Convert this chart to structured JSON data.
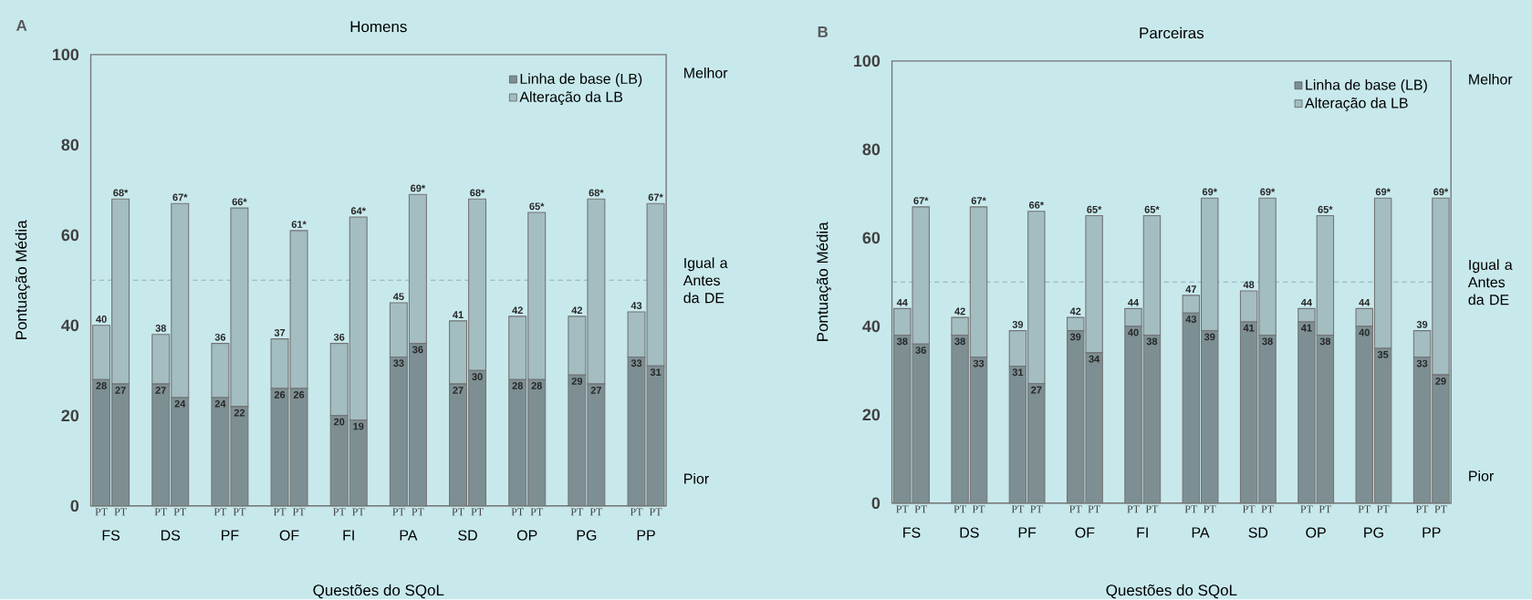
{
  "chart_data": [
    {
      "type": "bar",
      "title": "Homens",
      "xlabel": "Questões do SQoL",
      "ylabel": "Pontuação Média",
      "legend": "top right",
      "stacked": true,
      "categories": [
        "PT",
        "PT",
        "PT",
        "PT",
        "PT",
        "PT",
        "PT",
        "PT",
        "PT",
        "PT",
        "PT",
        "PT",
        "PT",
        "PT",
        "PT",
        "PT",
        "PT",
        "PT",
        "PT",
        "PT"
      ],
      "series": [
        {
          "name": "Linha de base (LB)",
          "color": "#7d8f93",
          "values": [
            28,
            27,
            27,
            24,
            24,
            22,
            26,
            26,
            20,
            19,
            33,
            36,
            27,
            30,
            28,
            28,
            29,
            27,
            33,
            31
          ],
          "value_labels": [
            "28",
            "27",
            "27",
            "24",
            "24",
            "22",
            "26",
            "26",
            "20",
            "19",
            "33",
            "36",
            "27",
            "30",
            "28",
            "28",
            "29",
            "27",
            "33",
            "31"
          ]
        },
        {
          "name": "Alteração da LB",
          "color": "#a3bdc1",
          "values": [
            12,
            41,
            11,
            43,
            12,
            44,
            11,
            35,
            16,
            45,
            12,
            33,
            14,
            38,
            14,
            37,
            13,
            41,
            10,
            36
          ]
        }
      ],
      "totals": [
        "40",
        "68*",
        "38",
        "67*",
        "36",
        "66*",
        "37",
        "61*",
        "36",
        "64*",
        "45",
        "69*",
        "41",
        "68*",
        "42",
        "65*",
        "42",
        "68*",
        "43",
        "67*"
      ],
      "ylim": [
        0,
        100
      ],
      "yticks": [
        0,
        20,
        40,
        60,
        80,
        100
      ],
      "ref_lines": [
        {
          "axis": "y",
          "value": 50,
          "label": "Igual a Antes da DE",
          "color": "#8fb0b4",
          "line_style": "dashed"
        }
      ],
      "annotations": [
        "A",
        "Melhor",
        "Pior",
        "FS",
        "DS",
        "PF",
        "OF",
        "FI",
        "PA",
        "SD",
        "OP",
        "PG",
        "PP"
      ]
    },
    {
      "type": "bar",
      "title": "Parceiras",
      "xlabel": "Questões do SQoL",
      "ylabel": "Pontuação Média",
      "legend": "top right",
      "stacked": true,
      "categories": [
        "PT",
        "PT",
        "PT",
        "PT",
        "PT",
        "PT",
        "PT",
        "PT",
        "PT",
        "PT",
        "PT",
        "PT",
        "PT",
        "PT",
        "PT",
        "PT",
        "PT",
        "PT",
        "PT",
        "PT"
      ],
      "series": [
        {
          "name": "Linha de base (LB)",
          "color": "#7d8f93",
          "values": [
            38,
            36,
            38,
            33,
            31,
            27,
            39,
            34,
            40,
            38,
            43,
            39,
            41,
            38,
            41,
            38,
            40,
            35,
            33,
            29
          ],
          "value_labels": [
            "38",
            "36",
            "38",
            "33",
            "31",
            "27",
            "39",
            "34",
            "40",
            "38",
            "43",
            "39",
            "41",
            "38",
            "41",
            "38",
            "40",
            "35",
            "33",
            "29"
          ]
        },
        {
          "name": "Alteração da LB",
          "color": "#a3bdc1",
          "values": [
            6,
            31,
            4,
            34,
            8,
            39,
            3,
            31,
            4,
            27,
            4,
            30,
            7,
            31,
            3,
            27,
            4,
            34,
            6,
            40
          ]
        }
      ],
      "totals": [
        "44",
        "67*",
        "42",
        "67*",
        "39",
        "66*",
        "42",
        "65*",
        "44",
        "65*",
        "47",
        "69*",
        "48",
        "69*",
        "44",
        "65*",
        "44",
        "69*",
        "39",
        "69*"
      ],
      "ylim": [
        0,
        100
      ],
      "yticks": [
        0,
        20,
        40,
        60,
        80,
        100
      ],
      "ref_lines": [
        {
          "axis": "y",
          "value": 50,
          "label": "Igual a Antes da DE",
          "color": "#8fb0b4",
          "line_style": "dashed"
        }
      ],
      "annotations": [
        "B",
        "Melhor",
        "Pior",
        "FS",
        "DS",
        "PF",
        "OF",
        "FI",
        "PA",
        "SD",
        "OP",
        "PG",
        "PP"
      ]
    }
  ]
}
